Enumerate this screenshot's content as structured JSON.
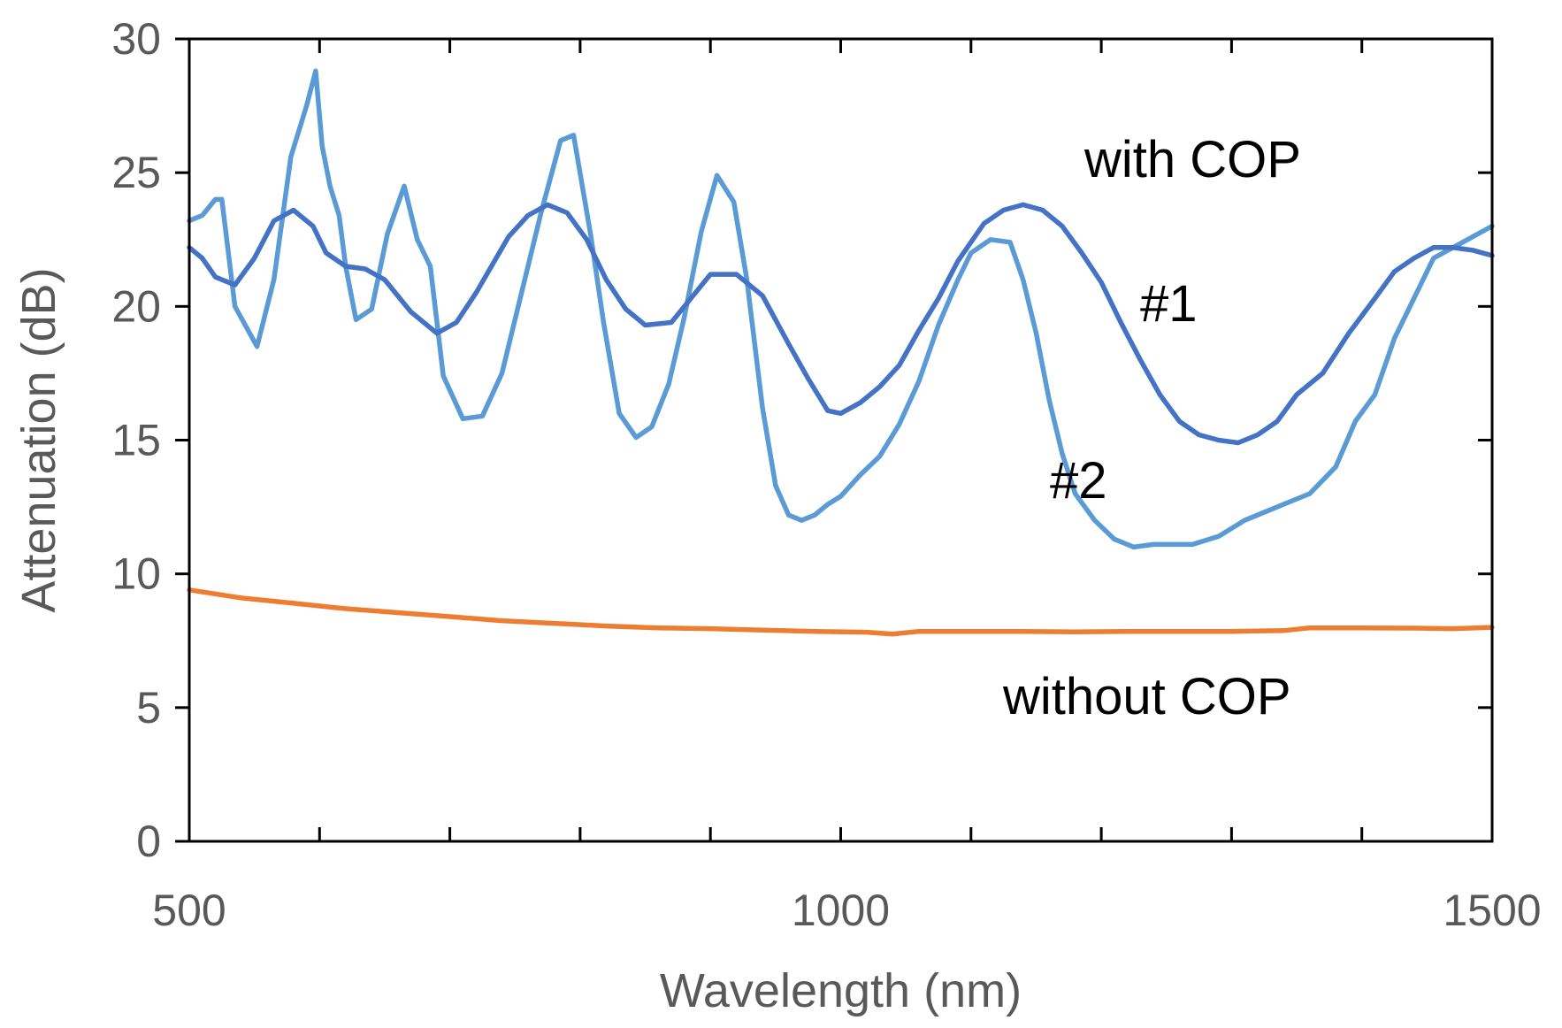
{
  "chart_data": {
    "type": "line",
    "title": "",
    "xlabel": "Wavelength (nm)",
    "ylabel": "Attenuation (dB)",
    "xlim": [
      500,
      1500
    ],
    "ylim": [
      0,
      30
    ],
    "x_ticks": [
      500,
      1000,
      1500
    ],
    "x_minor_ticks": [
      600,
      700,
      800,
      900,
      1100,
      1200,
      1300,
      1400
    ],
    "y_ticks": [
      0,
      5,
      10,
      15,
      20,
      25,
      30
    ],
    "grid": false,
    "legend": "none",
    "colors": {
      "series1": "#4472C4",
      "series2": "#5B9BD5",
      "without": "#ED7D31",
      "axis": "#000000",
      "text": "#595959"
    },
    "annotations": {
      "with_cop": "with  COP",
      "without_cop": "without  COP",
      "series1_tag": "#1",
      "series2_tag": "#2"
    },
    "series": [
      {
        "name": "#1",
        "x": [
          500,
          510,
          520,
          535,
          550,
          565,
          580,
          595,
          605,
          620,
          635,
          650,
          670,
          690,
          705,
          720,
          745,
          760,
          775,
          790,
          805,
          820,
          835,
          850,
          870,
          885,
          900,
          920,
          940,
          960,
          975,
          990,
          1000,
          1015,
          1030,
          1045,
          1060,
          1075,
          1090,
          1110,
          1125,
          1140,
          1155,
          1170,
          1185,
          1200,
          1215,
          1230,
          1245,
          1260,
          1275,
          1290,
          1305,
          1320,
          1335,
          1350,
          1370,
          1390,
          1410,
          1425,
          1440,
          1455,
          1470,
          1485,
          1500
        ],
        "y": [
          22.2,
          21.8,
          21.1,
          20.8,
          21.8,
          23.2,
          23.6,
          23.0,
          22.0,
          21.5,
          21.4,
          21.0,
          19.8,
          19.0,
          19.4,
          20.5,
          22.6,
          23.4,
          23.8,
          23.5,
          22.5,
          21.0,
          19.9,
          19.3,
          19.4,
          20.3,
          21.2,
          21.2,
          20.4,
          18.6,
          17.3,
          16.1,
          16.0,
          16.4,
          17.0,
          17.8,
          19.1,
          20.3,
          21.7,
          23.1,
          23.6,
          23.8,
          23.6,
          23.0,
          22.0,
          20.9,
          19.4,
          18.0,
          16.7,
          15.7,
          15.2,
          15.0,
          14.9,
          15.2,
          15.7,
          16.7,
          17.5,
          19.0,
          20.3,
          21.3,
          21.8,
          22.2,
          22.2,
          22.1,
          21.9
        ]
      },
      {
        "name": "#2",
        "x": [
          500,
          510,
          520,
          525,
          535,
          552,
          565,
          578,
          590,
          597,
          602,
          608,
          615,
          620,
          628,
          640,
          652,
          665,
          675,
          685,
          695,
          710,
          725,
          740,
          755,
          770,
          785,
          795,
          808,
          818,
          830,
          843,
          855,
          868,
          880,
          893,
          905,
          918,
          928,
          940,
          950,
          960,
          970,
          980,
          990,
          1000,
          1015,
          1030,
          1045,
          1060,
          1075,
          1090,
          1100,
          1115,
          1130,
          1140,
          1150,
          1160,
          1170,
          1180,
          1195,
          1210,
          1225,
          1240,
          1255,
          1270,
          1290,
          1310,
          1330,
          1345,
          1360,
          1380,
          1395,
          1410,
          1425,
          1440,
          1455,
          1470,
          1485,
          1500
        ],
        "y": [
          23.2,
          23.4,
          24.0,
          24.0,
          20.0,
          18.5,
          21.0,
          25.6,
          27.5,
          28.8,
          26.0,
          24.5,
          23.4,
          21.5,
          19.5,
          19.9,
          22.7,
          24.5,
          22.5,
          21.5,
          17.4,
          15.8,
          15.9,
          17.5,
          20.5,
          23.5,
          26.2,
          26.4,
          22.7,
          19.4,
          16.0,
          15.1,
          15.5,
          17.1,
          19.6,
          22.8,
          24.9,
          23.9,
          21.0,
          16.2,
          13.3,
          12.2,
          12.0,
          12.2,
          12.6,
          12.9,
          13.7,
          14.4,
          15.6,
          17.2,
          19.3,
          21.0,
          22.0,
          22.5,
          22.4,
          21.0,
          19.0,
          16.5,
          14.5,
          13.0,
          12.0,
          11.3,
          11.0,
          11.1,
          11.1,
          11.1,
          11.4,
          12.0,
          12.4,
          12.7,
          13.0,
          14.0,
          15.7,
          16.7,
          18.8,
          20.3,
          21.8,
          22.2,
          22.6,
          23.0
        ]
      },
      {
        "name": "without COP",
        "x": [
          500,
          540,
          580,
          620,
          660,
          700,
          740,
          780,
          820,
          860,
          900,
          940,
          980,
          1020,
          1040,
          1060,
          1100,
          1140,
          1180,
          1220,
          1260,
          1300,
          1340,
          1360,
          1400,
          1440,
          1470,
          1500
        ],
        "y": [
          9.4,
          9.1,
          8.9,
          8.7,
          8.55,
          8.4,
          8.25,
          8.15,
          8.05,
          7.98,
          7.95,
          7.9,
          7.85,
          7.82,
          7.75,
          7.85,
          7.85,
          7.85,
          7.83,
          7.85,
          7.85,
          7.85,
          7.88,
          7.98,
          7.98,
          7.97,
          7.95,
          8.0
        ]
      }
    ]
  }
}
